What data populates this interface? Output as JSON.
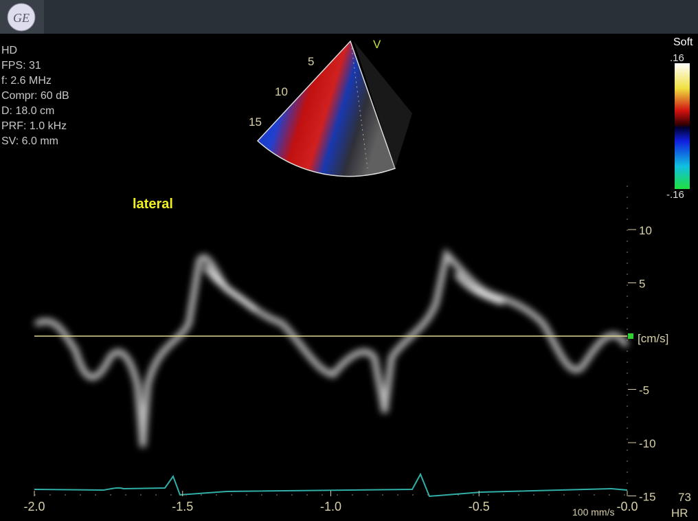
{
  "header": {
    "logo": "GE"
  },
  "info": [
    "HD",
    "FPS: 31",
    "f: 2.6 MHz",
    "Compr: 60 dB",
    "D: 18.0 cm",
    "PRF: 1.0 kHz",
    "SV: 6.0 mm"
  ],
  "sector": {
    "marker": "V",
    "depth_labels": [
      "5",
      "10",
      "15"
    ]
  },
  "color_bar": {
    "title": "Soft",
    "max": ".16",
    "min": "-.16"
  },
  "view_label": "lateral",
  "velocity_axis": {
    "unit": "[cm/s]",
    "ticks": [
      10,
      5,
      -5,
      -10,
      -15
    ]
  },
  "time_axis": {
    "ticks": [
      {
        "value": -2,
        "label": "-2.0"
      },
      {
        "value": -1.5,
        "label": "-1.5"
      },
      {
        "value": -1,
        "label": "-1.0"
      },
      {
        "value": -0.5,
        "label": "-0.5"
      },
      {
        "value": 0,
        "label": "-0.0"
      }
    ]
  },
  "sweep_speed": "100 mm/s",
  "heart_rate": {
    "value": "73",
    "label": "HR"
  }
}
